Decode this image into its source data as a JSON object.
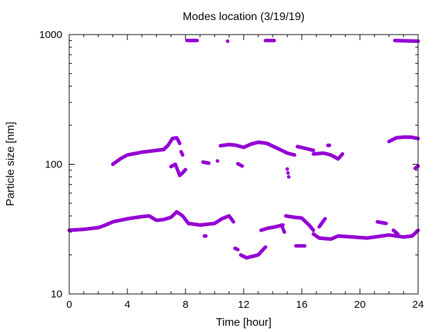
{
  "chart_data": {
    "type": "scatter",
    "title": "Modes location (3/19/19)",
    "xlabel": "Time [hour]",
    "ylabel": "Particle size [nm]",
    "xlim": [
      0,
      24
    ],
    "ylim": [
      10,
      1000
    ],
    "yscale": "log",
    "x_ticks": [
      0,
      4,
      8,
      12,
      16,
      20,
      24
    ],
    "x_tick_labels": [
      "0",
      "4",
      "8",
      "12",
      "16",
      "20",
      "24"
    ],
    "y_ticks": [
      10,
      100,
      1000
    ],
    "y_tick_labels": [
      "10",
      "100",
      "1000"
    ],
    "grid": false,
    "legend": "none",
    "marker_color": "#9400d3",
    "series": [
      {
        "segments": [
          [
            [
              0.0,
              31
            ],
            [
              1.0,
              31.5
            ],
            [
              2.0,
              32.5
            ],
            [
              2.5,
              34
            ],
            [
              3.0,
              36
            ],
            [
              4.0,
              38
            ],
            [
              5.0,
              39.5
            ],
            [
              5.5,
              40
            ],
            [
              6.0,
              37
            ],
            [
              6.5,
              37.5
            ],
            [
              7.0,
              39
            ],
            [
              7.4,
              43
            ],
            [
              7.8,
              40
            ],
            [
              8.2,
              35
            ],
            [
              9.0,
              34
            ],
            [
              10.0,
              35
            ],
            [
              10.5,
              38
            ],
            [
              11.0,
              40
            ],
            [
              11.3,
              36
            ]
          ],
          [
            [
              11.4,
              22.5
            ],
            [
              11.6,
              22
            ]
          ],
          [
            [
              11.8,
              20
            ],
            [
              12.2,
              19
            ],
            [
              12.6,
              19.5
            ],
            [
              13.0,
              20
            ],
            [
              13.5,
              23
            ]
          ],
          [
            [
              13.2,
              31
            ],
            [
              13.6,
              32
            ],
            [
              14.2,
              33
            ],
            [
              14.7,
              34
            ]
          ],
          [
            [
              14.9,
              40
            ],
            [
              15.5,
              39
            ],
            [
              16.0,
              38.5
            ],
            [
              16.5,
              34
            ],
            [
              16.8,
              31
            ]
          ],
          [
            [
              15.6,
              23.5
            ],
            [
              16.2,
              23.5
            ]
          ],
          [
            [
              16.8,
              29
            ],
            [
              17.2,
              27
            ],
            [
              18.0,
              26.5
            ],
            [
              18.5,
              28
            ],
            [
              19.5,
              27.5
            ],
            [
              20.5,
              27
            ],
            [
              21.5,
              28
            ],
            [
              22.0,
              28.5
            ],
            [
              22.5,
              28
            ],
            [
              23.0,
              27.5
            ],
            [
              23.6,
              28
            ],
            [
              24.0,
              31
            ]
          ],
          [
            [
              17.2,
              33
            ],
            [
              17.6,
              38
            ]
          ],
          [
            [
              21.2,
              36
            ],
            [
              21.8,
              35
            ]
          ],
          [
            [
              22.3,
              31
            ],
            [
              22.6,
              29
            ]
          ],
          [
            [
              14.6,
              34
            ],
            [
              14.8,
              30
            ]
          ],
          [
            [
              9.3,
              28
            ],
            [
              9.4,
              28
            ]
          ]
        ]
      },
      {
        "segments": [
          [
            [
              3.0,
              100
            ],
            [
              3.5,
              110
            ],
            [
              4.0,
              118
            ],
            [
              5.0,
              124
            ],
            [
              6.0,
              128
            ],
            [
              6.5,
              130
            ],
            [
              6.8,
              140
            ],
            [
              7.1,
              158
            ],
            [
              7.4,
              160
            ],
            [
              7.6,
              145
            ]
          ],
          [
            [
              7.0,
              96
            ],
            [
              7.3,
              100
            ],
            [
              7.6,
              82
            ],
            [
              7.8,
              86
            ],
            [
              8.0,
              91
            ]
          ],
          [
            [
              7.7,
              125
            ],
            [
              7.8,
              118
            ]
          ],
          [
            [
              9.2,
              104
            ],
            [
              9.6,
              102
            ]
          ],
          [
            [
              10.2,
              106
            ],
            [
              10.2,
              106
            ]
          ],
          [
            [
              10.4,
              139
            ],
            [
              11.0,
              142
            ],
            [
              11.5,
              140
            ],
            [
              12.0,
              135
            ],
            [
              12.5,
              143
            ],
            [
              13.0,
              148
            ],
            [
              13.6,
              145
            ],
            [
              14.0,
              138
            ],
            [
              14.5,
              130
            ],
            [
              15.0,
              122
            ],
            [
              15.5,
              118
            ]
          ],
          [
            [
              11.6,
              101
            ],
            [
              11.9,
              97
            ]
          ],
          [
            [
              15.0,
              92
            ],
            [
              15.1,
              80
            ]
          ],
          [
            [
              15.7,
              137
            ],
            [
              16.2,
              133
            ],
            [
              16.8,
              128
            ]
          ],
          [
            [
              16.8,
              120
            ],
            [
              17.5,
              122
            ],
            [
              18.0,
              118
            ],
            [
              18.5,
              110
            ],
            [
              18.8,
              120
            ]
          ],
          [
            [
              17.8,
              140
            ],
            [
              17.9,
              140
            ]
          ],
          [
            [
              22.0,
              150
            ],
            [
              22.5,
              160
            ],
            [
              23.0,
              162
            ],
            [
              23.5,
              162
            ],
            [
              24.0,
              158
            ]
          ],
          [
            [
              23.8,
              93
            ],
            [
              24.0,
              97
            ]
          ]
        ]
      },
      {
        "segments": [
          [
            [
              8.1,
              900
            ],
            [
              8.8,
              900
            ]
          ],
          [
            [
              10.9,
              890
            ],
            [
              10.9,
              890
            ]
          ],
          [
            [
              13.5,
              900
            ],
            [
              14.1,
              900
            ]
          ],
          [
            [
              22.4,
              900
            ],
            [
              24.0,
              890
            ]
          ]
        ]
      }
    ]
  }
}
